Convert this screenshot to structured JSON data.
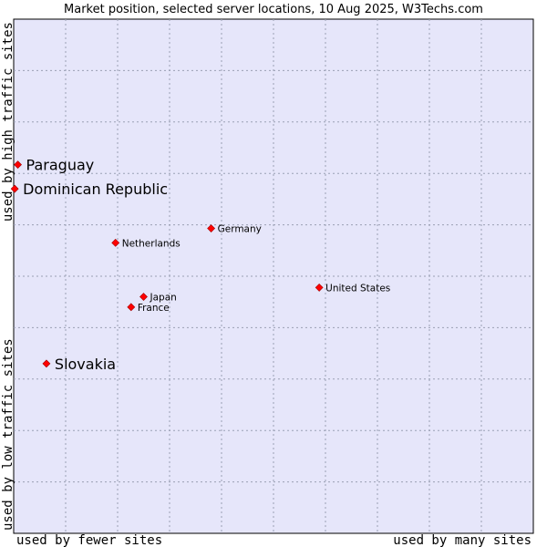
{
  "chart_data": {
    "type": "scatter",
    "title": "Market position, selected server locations, 10 Aug 2025, W3Techs.com",
    "xlabel_left": "used by fewer sites",
    "xlabel_right": "used by many sites",
    "ylabel_bottom": "used by low traffic sites",
    "ylabel_top": "used by high traffic sites",
    "xlim": [
      0,
      10
    ],
    "ylim": [
      0,
      10
    ],
    "grid": true,
    "point_color": "#ff0000",
    "plot_background": "#e6e6fa",
    "points": [
      {
        "label": "Paraguay",
        "x": 0.08,
        "y": 7.17,
        "highlight": true
      },
      {
        "label": "Dominican Republic",
        "x": 0.02,
        "y": 6.7,
        "highlight": true
      },
      {
        "label": "Germany",
        "x": 3.8,
        "y": 5.93,
        "highlight": false
      },
      {
        "label": "Netherlands",
        "x": 1.96,
        "y": 5.65,
        "highlight": false
      },
      {
        "label": "United States",
        "x": 5.88,
        "y": 4.78,
        "highlight": false
      },
      {
        "label": "Japan",
        "x": 2.5,
        "y": 4.6,
        "highlight": false
      },
      {
        "label": "France",
        "x": 2.26,
        "y": 4.4,
        "highlight": false
      },
      {
        "label": "Slovakia",
        "x": 0.63,
        "y": 3.3,
        "highlight": true
      }
    ]
  }
}
